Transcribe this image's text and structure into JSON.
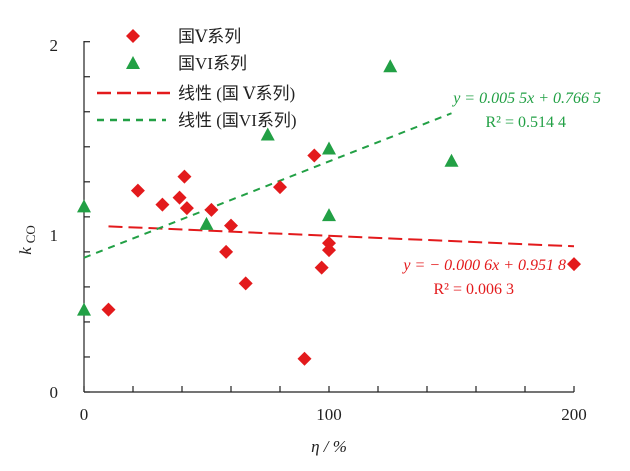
{
  "chart_data": {
    "type": "scatter",
    "title": "",
    "xlabel": "η / %",
    "ylabel": "k",
    "ylabel_sub": "CO",
    "xlim": [
      0,
      200
    ],
    "ylim": [
      0,
      2
    ],
    "x_ticks": [
      "0",
      "100",
      "200"
    ],
    "y_ticks": [
      "0",
      "1",
      "2"
    ],
    "x_minor_step": 20,
    "y_minor_step": 0.2,
    "grid": false,
    "legend_position": "top-left",
    "series": [
      {
        "name": "国Ⅴ系列",
        "marker": "diamond",
        "color": "#e31a1c",
        "points": [
          [
            10,
            0.47
          ],
          [
            22,
            1.15
          ],
          [
            32,
            1.07
          ],
          [
            39,
            1.11
          ],
          [
            41,
            1.23
          ],
          [
            42,
            1.05
          ],
          [
            52,
            1.04
          ],
          [
            58,
            0.8
          ],
          [
            60,
            0.95
          ],
          [
            66,
            0.62
          ],
          [
            80,
            1.17
          ],
          [
            90,
            0.19
          ],
          [
            94,
            1.35
          ],
          [
            97,
            0.71
          ],
          [
            100,
            0.85
          ],
          [
            100,
            0.81
          ],
          [
            200,
            0.73
          ]
        ]
      },
      {
        "name": "国VI系列",
        "marker": "triangle",
        "color": "#22a045",
        "points": [
          [
            0,
            1.06
          ],
          [
            0,
            0.47
          ],
          [
            50,
            0.96
          ],
          [
            75,
            1.47
          ],
          [
            100,
            1.39
          ],
          [
            100,
            1.01
          ],
          [
            125,
            1.86
          ],
          [
            150,
            1.32
          ]
        ]
      }
    ],
    "trendlines": [
      {
        "name": "线性 (国 Ⅴ系列)",
        "color": "#e31a1c",
        "slope": -0.0006,
        "intercept": 0.9518,
        "x_range": [
          10,
          200
        ],
        "equation": "y = − 0.000 6x + 0.951 8",
        "r2": "R² = 0.006 3"
      },
      {
        "name": "线性 (国VI系列)",
        "color": "#22a045",
        "slope": 0.0055,
        "intercept": 0.7665,
        "x_range": [
          0,
          150
        ],
        "equation": "y = 0.005 5x + 0.766 5",
        "r2": "R² = 0.514 4"
      }
    ]
  }
}
